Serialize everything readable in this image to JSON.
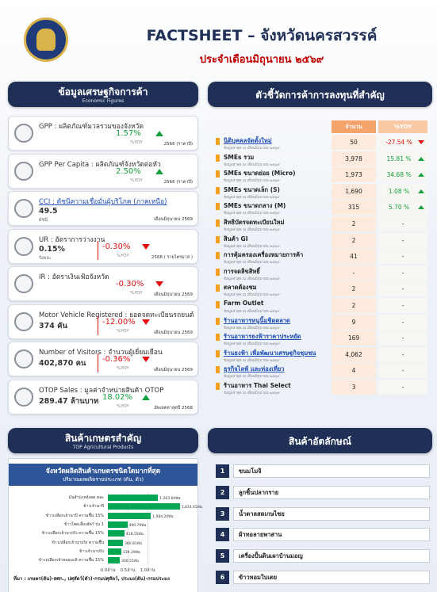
{
  "header": {
    "title": "FACTSHEET – จังหวัดนครสวรรค์",
    "subtitle": "ประจำเดือนมิถุนายน ๒๕๖๙"
  },
  "economic": {
    "title": "ข้อมูลเศรษฐกิจการค้า",
    "subtitle": "Economic Figures",
    "cards": [
      {
        "label": "GPP : ผลิตภัณฑ์มวลรวมของจังหวัด",
        "yoy": "1.57%",
        "trend": "up",
        "yoy_unit": "%YOY",
        "period": "2566 (ราคาปี)"
      },
      {
        "label": "GPP Per Capita : ผลิตภัณฑ์จังหวัดต่อหัว",
        "yoy": "2.50%",
        "trend": "up",
        "yoy_unit": "%YOY",
        "period": "2566 (ราคาปี)"
      },
      {
        "label": "CCI : ดัชนีความเชื่อมั่นผู้บริโภค (ภาคเหนือ)",
        "link": true,
        "value": "49.5",
        "value_unit": "ดัชนี",
        "period": "เดือนมิถุนายน 2569"
      },
      {
        "label": "UR : อัตราการว่างงาน",
        "value": "0.15%",
        "value_unit": "ร้อยละ",
        "yoy": "-0.30%",
        "trend": "down",
        "yoy_unit": "%YOY",
        "period": "2568 ( รายไตรมาส )"
      },
      {
        "label": "IR : อัตราเงินเฟ้อจังหวัด",
        "yoy": "-0.30%",
        "trend": "down",
        "yoy_unit": "%YOY",
        "period": "เดือนมิถุนายน 2569"
      },
      {
        "label": "Motor Vehicle Registered : ยอดจดทะเบียนรถยนต์",
        "value": "374 คัน",
        "yoy": "-12.00%",
        "trend": "down",
        "yoy_unit": "%YOY",
        "period": "เดือนมิถุนายน 2569"
      },
      {
        "label": "Number of Visitors : จำนวนผู้เยี่ยมเยือน",
        "value": "402,870 คน",
        "yoy": "-0.36%",
        "trend": "down",
        "yoy_unit": "%YOY",
        "period": "เดือนมิถุนายน 2569"
      },
      {
        "label": "OTOP Sales : มูลค่าจำหน่ายสินค้า OTOP",
        "value": "289.47 ล้านบาท",
        "yoy": "18.02%",
        "trend": "up",
        "yoy_unit": "%YOY",
        "period": "อัพเดตล่าสุดปี 2568"
      }
    ]
  },
  "trade": {
    "title": "ตัวชี้วัดการค้าการลงทุนที่สำคัญ",
    "columns": [
      "จำนวน",
      "%YOY"
    ],
    "note": "ข้อมูลล่าสุด ณ เดือนมิถุนายน ๒๕๖๙",
    "rows": [
      {
        "name": "นิติบุคคลจัดตั้งใหม่",
        "link": true,
        "value": "50",
        "yoy": "-27.54 %",
        "trend": "down"
      },
      {
        "name": "SMEs รวม",
        "value": "3,978",
        "yoy": "15.81 %",
        "trend": "up"
      },
      {
        "name": "SMEs ขนาดย่อย (Micro)",
        "value": "1,973",
        "yoy": "34.68 %",
        "trend": "up"
      },
      {
        "name": "SMEs ขนาดเล็ก (S)",
        "value": "1,690",
        "yoy": "1.08 %",
        "trend": "up"
      },
      {
        "name": "SMEs ขนาดกลาง (M)",
        "value": "315",
        "yoy": "5.70 %",
        "trend": "up"
      },
      {
        "name": "สิทธิบัตรจดทะเบียนใหม่",
        "value": "2",
        "yoy": "-"
      },
      {
        "name": "สินค้า GI",
        "value": "2",
        "yoy": "-"
      },
      {
        "name": "การคุ้มครองเครื่องหมายการค้า",
        "value": "41",
        "yoy": "-"
      },
      {
        "name": "การจดลิขสิทธิ์",
        "value": "-",
        "yoy": "-"
      },
      {
        "name": "ตลาดต้องชม",
        "value": "2",
        "yoy": "-"
      },
      {
        "name": "Farm Outlet",
        "value": "2",
        "yoy": "-"
      },
      {
        "name": "ร้านอาหารหนูนิ้มชิดตลาด",
        "link": true,
        "value": "9",
        "yoy": "-"
      },
      {
        "name": "ร้านอาหารธงฟ้าราคาประหยัด",
        "link": true,
        "value": "169",
        "yoy": "-"
      },
      {
        "name": "ร้านธงฟ้า เพื่อพัฒนาเศรษฐกิจชุมชน",
        "link": true,
        "value": "4,062",
        "yoy": "-"
      },
      {
        "name": "ธุรกิจไลฟ์ และท่องเที่ยว",
        "link": true,
        "value": "4",
        "yoy": "-"
      },
      {
        "name": "ร้านอาหาร Thai Select",
        "value": "3",
        "yoy": "-"
      }
    ]
  },
  "agri": {
    "title": "สินค้าเกษตรสำคัญ",
    "subtitle": "TOP Agricultural Products"
  },
  "chart_data": {
    "type": "bar",
    "orientation": "horizontal",
    "title": "จังหวัดผลิตสินค้าเกษตรชนิดใดมากที่สุด",
    "subtitle": "ปริมาณผลผลิตรายประเภท (ตัน, ตัว)",
    "categories": [
      "มันสำปะหลังสด คละ",
      "ข้าวเจ้านาปี",
      "ข้าวเปลือกเจ้านาปี ความชื้น 15%",
      "ข้าวโพดเลี้ยงสัตว์ รุ่น 1",
      "ข้าวเปลือกเจ้านาปรัง ความชื้น 15%",
      "ข้าวเปลือกเจ้านาปรัง ความชื้น",
      "ข้าวเจ้านาปรัง",
      "ข้าวเปลือกเจ้าหอมมะลิ ความชื้น 15%"
    ],
    "values": [
      1263600,
      1814450,
      1084200,
      490790,
      418550,
      380810,
      339290,
      300550
    ],
    "value_labels": [
      "1,263.60พัน",
      "1,814.45พัน",
      "1,084.20พัน",
      "490.79พัน",
      "418.55พัน",
      "380.81พัน",
      "339.29พัน",
      "300.55พัน"
    ],
    "color": "#00a651",
    "xlim": [
      0,
      2000000
    ],
    "xticks": [
      {
        "value": 0,
        "label": "0.0ล้าน"
      },
      {
        "value": 500000,
        "label": "0.5ล้าน"
      },
      {
        "value": 1000000,
        "label": "1.0ล้าน"
      }
    ],
    "source": "ที่มา : เกษตร(ตัน)-สศก., ปศุสัตว์(ตัว)-กรมปศุสัตว์, ประมง(ตัน)-กรมประมง"
  },
  "identity": {
    "title": "สินค้าอัตลักษณ์",
    "items": [
      {
        "num": "1",
        "name": "ขนมโมจิ"
      },
      {
        "num": "2",
        "name": "ลูกชิ้นปลากราย"
      },
      {
        "num": "3",
        "name": "น้ำตาลสดเกษไชย"
      },
      {
        "num": "4",
        "name": "ผ้าทอลายพาสาน"
      },
      {
        "num": "5",
        "name": "เครื่องปั้นดินเผาบ้านมอญ"
      },
      {
        "num": "6",
        "name": "ข้าวหอมใบเตย"
      }
    ]
  }
}
